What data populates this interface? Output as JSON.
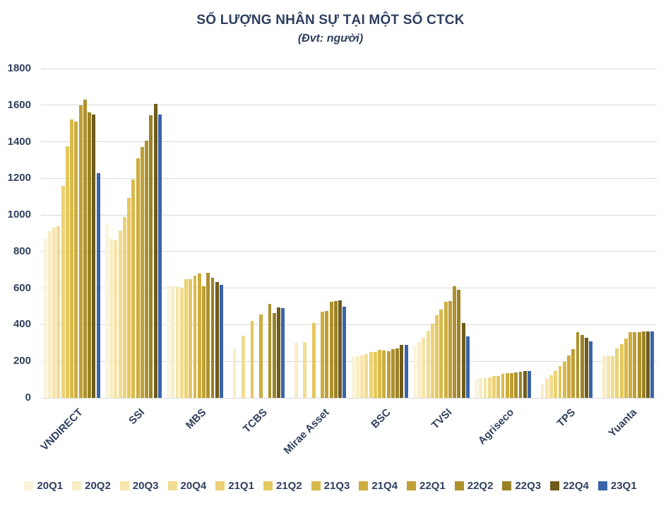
{
  "chart_data": {
    "type": "bar",
    "title": "SỐ LƯỢNG NHÂN SỰ TẠI MỘT SỐ CTCK",
    "subtitle": "(Đvt: người)",
    "unit": "người",
    "ylim": [
      0,
      1800
    ],
    "ytick_step": 200,
    "grid": true,
    "legend_position": "bottom",
    "categories": [
      "VNDIRECT",
      "SSI",
      "MBS",
      "TCBS",
      "Mirae Asset",
      "BSC",
      "TVSI",
      "Agriseco",
      "TPS",
      "Yuanta"
    ],
    "series": [
      {
        "name": "20Q1",
        "color": "#FBF4DC",
        "values": [
          870,
          945,
          615,
          null,
          null,
          225,
          285,
          105,
          null,
          null
        ]
      },
      {
        "name": "20Q2",
        "color": "#F9EDC6",
        "values": [
          910,
          870,
          612,
          270,
          300,
          228,
          305,
          107,
          75,
          230
        ]
      },
      {
        "name": "20Q3",
        "color": "#F6E5AA",
        "values": [
          930,
          860,
          608,
          null,
          null,
          232,
          330,
          109,
          105,
          233
        ]
      },
      {
        "name": "20Q4",
        "color": "#F2DC90",
        "values": [
          940,
          915,
          600,
          340,
          305,
          240,
          368,
          112,
          125,
          227
        ]
      },
      {
        "name": "21Q1",
        "color": "#ECD274",
        "values": [
          1160,
          990,
          648,
          null,
          null,
          250,
          405,
          118,
          148,
          272
        ]
      },
      {
        "name": "21Q2",
        "color": "#E4C75E",
        "values": [
          1375,
          1095,
          650,
          420,
          410,
          252,
          450,
          121,
          172,
          295
        ]
      },
      {
        "name": "21Q3",
        "color": "#D8BA4B",
        "values": [
          1520,
          1195,
          670,
          null,
          null,
          262,
          482,
          133,
          196,
          323
        ]
      },
      {
        "name": "21Q4",
        "color": "#CCAD3D",
        "values": [
          1510,
          1310,
          678,
          455,
          470,
          258,
          526,
          135,
          230,
          358
        ]
      },
      {
        "name": "22Q1",
        "color": "#BF9F34",
        "values": [
          1600,
          1370,
          612,
          null,
          475,
          255,
          530,
          137,
          265,
          360
        ]
      },
      {
        "name": "22Q2",
        "color": "#AE912C",
        "values": [
          1630,
          1405,
          685,
          515,
          525,
          265,
          610,
          139,
          358,
          361
        ]
      },
      {
        "name": "22Q3",
        "color": "#9A8226",
        "values": [
          1560,
          1545,
          655,
          465,
          528,
          272,
          590,
          142,
          342,
          362
        ]
      },
      {
        "name": "22Q4",
        "color": "#6F5B1C",
        "values": [
          1550,
          1605,
          632,
          495,
          532,
          288,
          410,
          146,
          330,
          365
        ]
      },
      {
        "name": "23Q1",
        "color": "#3A64A8",
        "values": [
          1230,
          1550,
          618,
          490,
          500,
          290,
          335,
          148,
          308,
          365
        ]
      }
    ]
  }
}
